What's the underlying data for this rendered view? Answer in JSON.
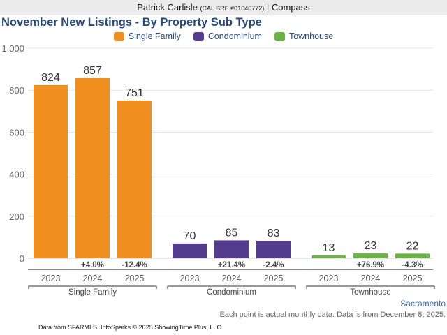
{
  "header": {
    "agent_name": "Patrick Carlisle",
    "license": "(CAL BRE #01040772)",
    "separator": "|",
    "brokerage": "Compass"
  },
  "chart_data": {
    "type": "bar",
    "title": "November New Listings - By Property Sub Type",
    "legend": [
      {
        "name": "Single Family",
        "color": "#f18e20"
      },
      {
        "name": "Condominium",
        "color": "#553b8d"
      },
      {
        "name": "Townhouse",
        "color": "#6bb146"
      }
    ],
    "legend_position": "top-center",
    "ylim": [
      0,
      1000
    ],
    "yticks": [
      0,
      200,
      400,
      600,
      800,
      1000
    ],
    "ytick_labels": [
      "0",
      "200",
      "400",
      "600",
      "800",
      "1,000"
    ],
    "grid": true,
    "groups": [
      {
        "name": "Single Family",
        "color": "#f18e20",
        "categories": [
          "2023",
          "2024",
          "2025"
        ],
        "values": [
          824,
          857,
          751
        ],
        "changes": [
          "",
          "+4.0%",
          "-12.4%"
        ]
      },
      {
        "name": "Condominium",
        "color": "#553b8d",
        "categories": [
          "2023",
          "2024",
          "2025"
        ],
        "values": [
          70,
          85,
          83
        ],
        "changes": [
          "",
          "+21.4%",
          "-2.4%"
        ]
      },
      {
        "name": "Townhouse",
        "color": "#6bb146",
        "categories": [
          "2023",
          "2024",
          "2025"
        ],
        "values": [
          13,
          23,
          22
        ],
        "changes": [
          "",
          "+76.9%",
          "-4.3%"
        ]
      }
    ],
    "xlabel": "",
    "ylabel": ""
  },
  "footer": {
    "region": "Sacramento",
    "note": "Each point is actual monthly data. Data is from December 8, 2025.",
    "source": "Data from SFARMLS. InfoSparks © 2025 ShowingTime Plus, LLC."
  }
}
